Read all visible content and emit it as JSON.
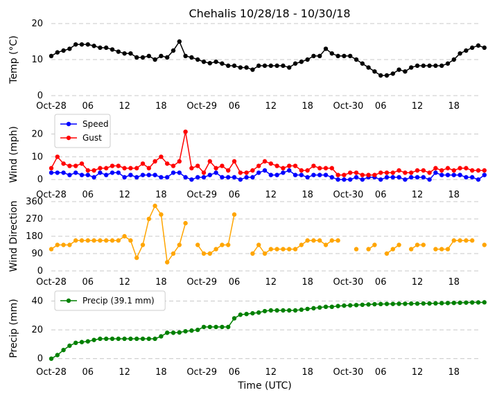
{
  "chart_data": [
    {
      "type": "line",
      "title": "Chehalis 10/28/18 - 10/30/18",
      "ylabel": "Temp ($^\\circ$C)",
      "xlabel": "",
      "ylim": [
        0,
        20
      ],
      "yticks": [
        0,
        10,
        20
      ],
      "xlim": [
        0,
        70
      ],
      "xticks": [
        0,
        6,
        12,
        18,
        24,
        30,
        36,
        42,
        48,
        54,
        60,
        66
      ],
      "xticklabels": [
        "Oct-28",
        "06",
        "12",
        "18",
        "Oct-29",
        "06",
        "12",
        "18",
        "Oct-30",
        "06",
        "12",
        "18"
      ],
      "grid": true,
      "legend": null,
      "series": [
        {
          "name": "Temp",
          "color": "#000000",
          "values": [
            11.0,
            12.0,
            12.5,
            13.0,
            14.2,
            14.2,
            14.2,
            13.8,
            13.3,
            13.3,
            12.8,
            12.2,
            11.7,
            11.7,
            10.6,
            10.6,
            11.0,
            10.0,
            11.0,
            10.6,
            12.5,
            15.0,
            11.0,
            10.6,
            10.0,
            9.4,
            9.0,
            9.4,
            8.9,
            8.3,
            8.3,
            7.8,
            7.8,
            7.2,
            8.3,
            8.3,
            8.3,
            8.3,
            8.3,
            7.8,
            8.9,
            9.4,
            10.0,
            11.0,
            11.0,
            13.0,
            11.7,
            11.0,
            11.0,
            11.0,
            10.0,
            8.9,
            7.8,
            6.7,
            5.6,
            5.6,
            6.1,
            7.2,
            6.7,
            7.8,
            8.3,
            8.3,
            8.3,
            8.3,
            8.3,
            8.9,
            10.0,
            11.7,
            12.5,
            13.3,
            13.9,
            13.3
          ]
        }
      ]
    },
    {
      "type": "line",
      "title": "",
      "ylabel": "Wind (mph)",
      "xlabel": "",
      "ylim": [
        -3,
        25
      ],
      "yticks": [
        0,
        10,
        20
      ],
      "xlim": [
        0,
        70
      ],
      "xticks": [
        0,
        6,
        12,
        18,
        24,
        30,
        36,
        42,
        48,
        54,
        60,
        66
      ],
      "xticklabels": [
        "Oct-28",
        "06",
        "12",
        "18",
        "Oct-29",
        "06",
        "12",
        "18",
        "Oct-30",
        "06",
        "12",
        "18"
      ],
      "grid": true,
      "legend": "top-left",
      "series": [
        {
          "name": "Speed",
          "color": "#0000ff",
          "values": [
            3,
            3,
            3,
            2,
            3,
            2,
            2,
            1,
            3,
            2,
            3,
            3,
            1,
            2,
            1,
            2,
            2,
            2,
            1,
            1,
            3,
            3,
            1,
            0,
            1,
            1,
            2,
            3,
            1,
            1,
            1,
            0,
            1,
            1,
            3,
            4,
            2,
            2,
            3,
            4,
            2,
            2,
            1,
            2,
            2,
            2,
            1,
            0,
            0,
            0,
            1,
            0,
            1,
            1,
            0,
            1,
            1,
            1,
            0,
            1,
            1,
            1,
            0,
            3,
            2,
            2,
            2,
            2,
            1,
            1,
            0,
            2
          ]
        },
        {
          "name": "Gust",
          "color": "#ff0000",
          "values": [
            5,
            10,
            7,
            6,
            6,
            7,
            4,
            4,
            5,
            5,
            6,
            6,
            5,
            5,
            5,
            7,
            5,
            8,
            10,
            7,
            6,
            8,
            21,
            5,
            6,
            3,
            8,
            5,
            6,
            4,
            8,
            3,
            3,
            4,
            6,
            8,
            7,
            6,
            5,
            6,
            6,
            4,
            4,
            6,
            5,
            5,
            5,
            2,
            2,
            3,
            3,
            2,
            2,
            2,
            3,
            3,
            3,
            4,
            3,
            3,
            4,
            4,
            3,
            5,
            4,
            5,
            4,
            5,
            5,
            4,
            4,
            4
          ]
        }
      ]
    },
    {
      "type": "scatter",
      "title": "",
      "ylabel": "Wind Direction",
      "xlabel": "",
      "ylim": [
        0,
        360
      ],
      "yticks": [
        0,
        90,
        180,
        270,
        360
      ],
      "xlim": [
        0,
        70
      ],
      "xticks": [
        0,
        6,
        12,
        18,
        24,
        30,
        36,
        42,
        48,
        54,
        60,
        66
      ],
      "xticklabels": [
        "Oct-28",
        "06",
        "12",
        "18",
        "Oct-29",
        "06",
        "12",
        "18",
        "Oct-30",
        "06",
        "12",
        "18"
      ],
      "grid": true,
      "legend": null,
      "series": [
        {
          "name": "Direction",
          "color": "#ffa500",
          "values": [
            113,
            135,
            135,
            135,
            158,
            158,
            158,
            158,
            158,
            158,
            158,
            158,
            180,
            158,
            68,
            135,
            270,
            338,
            293,
            45,
            90,
            135,
            248,
            null,
            135,
            90,
            90,
            113,
            135,
            135,
            293,
            null,
            null,
            90,
            135,
            90,
            113,
            113,
            113,
            113,
            113,
            135,
            158,
            158,
            158,
            135,
            158,
            158,
            null,
            null,
            113,
            null,
            113,
            135,
            null,
            90,
            113,
            135,
            null,
            113,
            135,
            135,
            null,
            113,
            113,
            113,
            158,
            158,
            158,
            158,
            null,
            135
          ],
          "connected_segments": [
            [
              0,
              22
            ],
            [
              24,
              30
            ],
            [
              33,
              47
            ],
            [
              51,
              53
            ],
            [
              55,
              57
            ],
            [
              59,
              61
            ],
            [
              63,
              69
            ]
          ]
        }
      ]
    },
    {
      "type": "line",
      "title": "",
      "ylabel": "Precip (mm)",
      "xlabel": "Time (UTC)",
      "ylim": [
        -4,
        46
      ],
      "yticks": [
        0,
        20,
        40
      ],
      "xlim": [
        0,
        70
      ],
      "xticks": [
        0,
        6,
        12,
        18,
        24,
        30,
        36,
        42,
        48,
        54,
        60,
        66
      ],
      "xticklabels": [
        "Oct-28",
        "06",
        "12",
        "18",
        "Oct-29",
        "06",
        "12",
        "18",
        "Oct-30",
        "06",
        "12",
        "18"
      ],
      "grid": true,
      "legend": "top-left",
      "series": [
        {
          "name": "Precip (39.1 mm)",
          "color": "#008000",
          "values": [
            0,
            2.5,
            6,
            9,
            11,
            11.5,
            12,
            13,
            13.8,
            13.8,
            13.8,
            13.8,
            13.8,
            13.8,
            13.8,
            13.8,
            13.8,
            13.8,
            15.5,
            18,
            18,
            18.2,
            19,
            19.5,
            20,
            22,
            22,
            22,
            22,
            22,
            28,
            30.5,
            31,
            31.5,
            32,
            33,
            33.5,
            33.5,
            33.5,
            33.5,
            33.5,
            34,
            34.5,
            35,
            35.5,
            36,
            36,
            36.5,
            36.8,
            37,
            37.2,
            37.4,
            37.6,
            37.8,
            37.9,
            38,
            38,
            38.1,
            38.1,
            38.2,
            38.2,
            38.3,
            38.3,
            38.4,
            38.5,
            38.6,
            38.7,
            38.8,
            38.9,
            39,
            39.05,
            39.1
          ]
        }
      ]
    }
  ]
}
